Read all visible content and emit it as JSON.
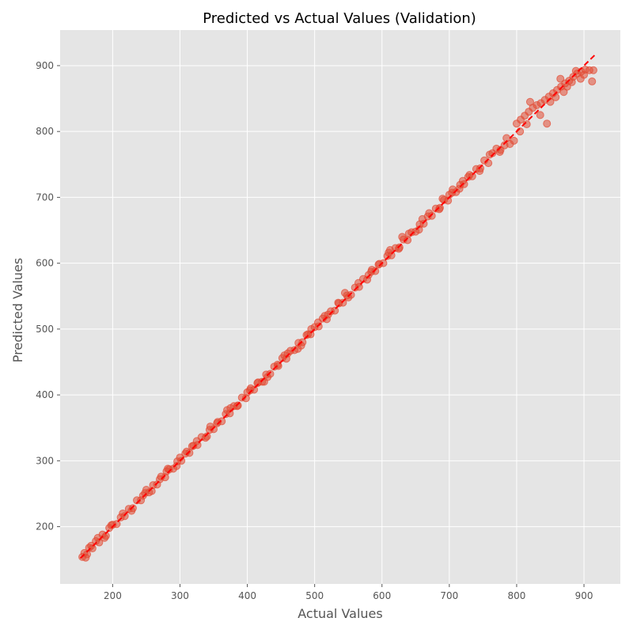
{
  "chart_data": {
    "type": "scatter",
    "title": "Predicted vs Actual Values (Validation)",
    "xlabel": "Actual Values",
    "ylabel": "Predicted Values",
    "xlim": [
      122,
      954
    ],
    "ylim": [
      113,
      954
    ],
    "xticks": [
      200,
      300,
      400,
      500,
      600,
      700,
      800,
      900
    ],
    "yticks": [
      200,
      300,
      400,
      500,
      600,
      700,
      800,
      900
    ],
    "grid": true,
    "style": "ggplot",
    "colors": {
      "background": "#E5E5E5",
      "grid": "#FFFFFF",
      "points": "#E24A33",
      "reference_line": "#FF0000"
    },
    "reference_line": {
      "x": [
        152,
        917
      ],
      "y": [
        152,
        917
      ],
      "style": "dashed"
    },
    "series": [
      {
        "points": [
          [
            155,
            154
          ],
          [
            158,
            160
          ],
          [
            162,
            158
          ],
          [
            165,
            168
          ],
          [
            170,
            167
          ],
          [
            175,
            178
          ],
          [
            180,
            176
          ],
          [
            185,
            188
          ],
          [
            190,
            186
          ],
          [
            195,
            198
          ],
          [
            200,
            203
          ],
          [
            206,
            204
          ],
          [
            212,
            214
          ],
          [
            218,
            216
          ],
          [
            224,
            227
          ],
          [
            230,
            228
          ],
          [
            236,
            240
          ],
          [
            242,
            240
          ],
          [
            248,
            251
          ],
          [
            254,
            252
          ],
          [
            260,
            263
          ],
          [
            266,
            264
          ],
          [
            272,
            276
          ],
          [
            278,
            275
          ],
          [
            284,
            287
          ],
          [
            290,
            288
          ],
          [
            296,
            299
          ],
          [
            302,
            300
          ],
          [
            308,
            311
          ],
          [
            314,
            312
          ],
          [
            320,
            323
          ],
          [
            326,
            324
          ],
          [
            332,
            336
          ],
          [
            338,
            335
          ],
          [
            344,
            347
          ],
          [
            350,
            348
          ],
          [
            356,
            359
          ],
          [
            362,
            360
          ],
          [
            368,
            371
          ],
          [
            374,
            372
          ],
          [
            380,
            383
          ],
          [
            386,
            384
          ],
          [
            392,
            396
          ],
          [
            398,
            395
          ],
          [
            404,
            407
          ],
          [
            410,
            408
          ],
          [
            416,
            419
          ],
          [
            422,
            420
          ],
          [
            428,
            431
          ],
          [
            434,
            432
          ],
          [
            440,
            443
          ],
          [
            446,
            444
          ],
          [
            452,
            456
          ],
          [
            458,
            455
          ],
          [
            464,
            467
          ],
          [
            470,
            468
          ],
          [
            476,
            479
          ],
          [
            482,
            480
          ],
          [
            488,
            491
          ],
          [
            494,
            492
          ],
          [
            500,
            503
          ],
          [
            506,
            504
          ],
          [
            512,
            516
          ],
          [
            518,
            515
          ],
          [
            524,
            527
          ],
          [
            530,
            528
          ],
          [
            536,
            539
          ],
          [
            542,
            540
          ],
          [
            548,
            551
          ],
          [
            554,
            552
          ],
          [
            560,
            563
          ],
          [
            566,
            564
          ],
          [
            572,
            576
          ],
          [
            578,
            575
          ],
          [
            584,
            587
          ],
          [
            590,
            588
          ],
          [
            596,
            599
          ],
          [
            602,
            600
          ],
          [
            608,
            611
          ],
          [
            614,
            612
          ],
          [
            620,
            623
          ],
          [
            626,
            624
          ],
          [
            632,
            636
          ],
          [
            638,
            635
          ],
          [
            644,
            647
          ],
          [
            650,
            648
          ],
          [
            656,
            659
          ],
          [
            662,
            660
          ],
          [
            668,
            671
          ],
          [
            674,
            672
          ],
          [
            680,
            683
          ],
          [
            686,
            684
          ],
          [
            692,
            696
          ],
          [
            698,
            695
          ],
          [
            704,
            707
          ],
          [
            710,
            708
          ],
          [
            716,
            719
          ],
          [
            722,
            720
          ],
          [
            728,
            731
          ],
          [
            734,
            732
          ],
          [
            740,
            743
          ],
          [
            746,
            744
          ],
          [
            752,
            756
          ],
          [
            758,
            752
          ],
          [
            764,
            767
          ],
          [
            770,
            774
          ],
          [
            776,
            772
          ],
          [
            782,
            779
          ],
          [
            790,
            781
          ],
          [
            796,
            786
          ],
          [
            800,
            812
          ],
          [
            806,
            818
          ],
          [
            812,
            824
          ],
          [
            818,
            830
          ],
          [
            824,
            836
          ],
          [
            830,
            840
          ],
          [
            836,
            843
          ],
          [
            842,
            848
          ],
          [
            848,
            853
          ],
          [
            854,
            858
          ],
          [
            860,
            863
          ],
          [
            866,
            868
          ],
          [
            872,
            873
          ],
          [
            878,
            877
          ],
          [
            884,
            883
          ],
          [
            890,
            888
          ],
          [
            896,
            891
          ],
          [
            902,
            894
          ],
          [
            908,
            893
          ],
          [
            914,
            893
          ],
          [
            160,
            153
          ],
          [
            168,
            171
          ],
          [
            178,
            183
          ],
          [
            188,
            183
          ],
          [
            198,
            202
          ],
          [
            215,
            220
          ],
          [
            228,
            224
          ],
          [
            245,
            247
          ],
          [
            258,
            254
          ],
          [
            270,
            272
          ],
          [
            282,
            288
          ],
          [
            295,
            292
          ],
          [
            310,
            314
          ],
          [
            325,
            330
          ],
          [
            340,
            337
          ],
          [
            355,
            357
          ],
          [
            370,
            377
          ],
          [
            385,
            383
          ],
          [
            400,
            404
          ],
          [
            415,
            418
          ],
          [
            430,
            427
          ],
          [
            445,
            446
          ],
          [
            460,
            463
          ],
          [
            475,
            470
          ],
          [
            490,
            492
          ],
          [
            505,
            510
          ],
          [
            520,
            522
          ],
          [
            535,
            540
          ],
          [
            550,
            548
          ],
          [
            565,
            570
          ],
          [
            580,
            582
          ],
          [
            595,
            598
          ],
          [
            610,
            616
          ],
          [
            625,
            622
          ],
          [
            640,
            645
          ],
          [
            655,
            651
          ],
          [
            670,
            676
          ],
          [
            685,
            682
          ],
          [
            700,
            704
          ],
          [
            715,
            713
          ],
          [
            730,
            734
          ],
          [
            745,
            740
          ],
          [
            760,
            765
          ],
          [
            775,
            769
          ],
          [
            785,
            790
          ],
          [
            805,
            800
          ],
          [
            815,
            811
          ],
          [
            820,
            845
          ],
          [
            835,
            825
          ],
          [
            845,
            812
          ],
          [
            850,
            845
          ],
          [
            858,
            852
          ],
          [
            865,
            880
          ],
          [
            870,
            860
          ],
          [
            875,
            868
          ],
          [
            882,
            875
          ],
          [
            888,
            892
          ],
          [
            895,
            880
          ],
          [
            900,
            886
          ],
          [
            912,
            876
          ],
          [
            720,
            725
          ],
          [
            705,
            712
          ],
          [
            690,
            698
          ],
          [
            660,
            667
          ],
          [
            630,
            640
          ],
          [
            612,
            620
          ],
          [
            585,
            590
          ],
          [
            545,
            555
          ],
          [
            515,
            520
          ],
          [
            495,
            500
          ],
          [
            480,
            475
          ],
          [
            455,
            460
          ],
          [
            425,
            420
          ],
          [
            405,
            410
          ],
          [
            375,
            380
          ],
          [
            345,
            352
          ],
          [
            318,
            322
          ],
          [
            300,
            305
          ],
          [
            280,
            284
          ],
          [
            250,
            256
          ]
        ]
      }
    ]
  }
}
